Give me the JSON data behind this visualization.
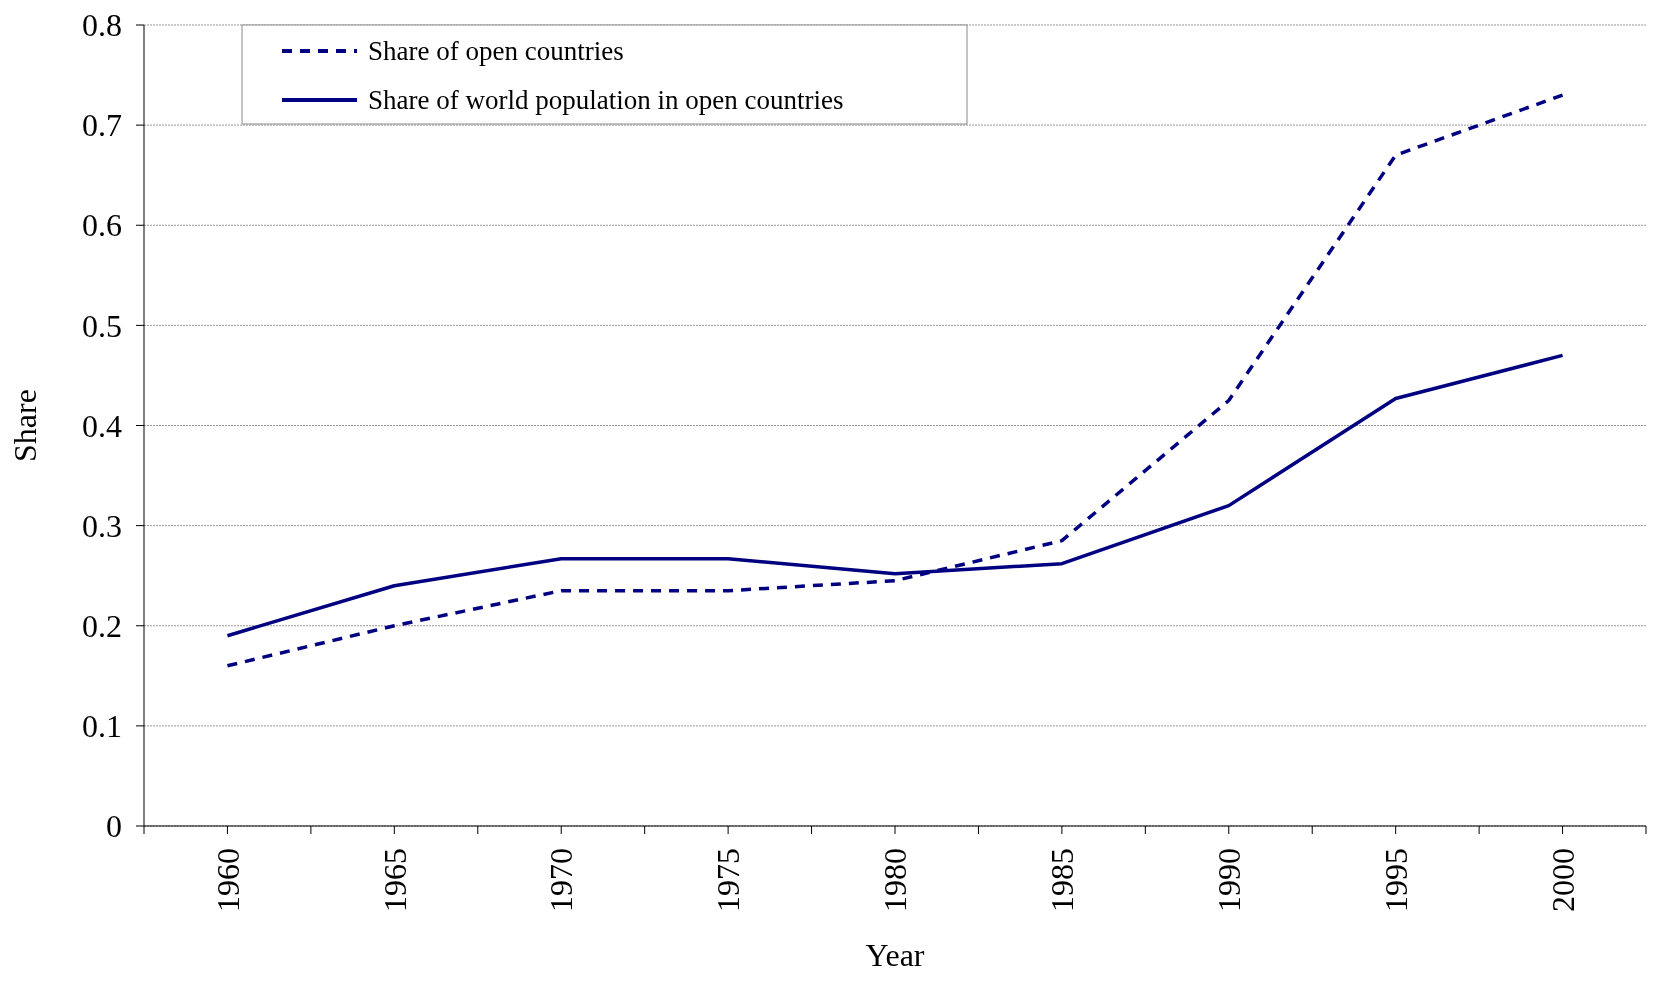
{
  "chart_data": {
    "type": "line",
    "xlabel": "Year",
    "ylabel": "Share",
    "x": [
      1960,
      1965,
      1970,
      1975,
      1980,
      1985,
      1990,
      1995,
      2000
    ],
    "series": [
      {
        "name": "Share of open countries",
        "color": "#000080",
        "line_style": "dashed",
        "values": [
          0.16,
          0.2,
          0.235,
          0.235,
          0.245,
          0.285,
          0.425,
          0.67,
          0.73
        ]
      },
      {
        "name": "Share of world population in open countries",
        "color": "#000080",
        "line_style": "solid",
        "values": [
          0.19,
          0.24,
          0.267,
          0.267,
          0.252,
          0.262,
          0.32,
          0.427,
          0.47
        ]
      }
    ],
    "xlim": [
      1957.5,
      2002.5
    ],
    "xticks": [
      {
        "value": 1957.5,
        "label": null
      },
      1960,
      {
        "value": 1962.5,
        "label": null
      },
      1965,
      {
        "value": 1967.5,
        "label": null
      },
      1970,
      {
        "value": 1972.5,
        "label": null
      },
      1975,
      {
        "value": 1977.5,
        "label": null
      },
      1980,
      {
        "value": 1982.5,
        "label": null
      },
      1985,
      {
        "value": 1987.5,
        "label": null
      },
      1990,
      {
        "value": 1992.5,
        "label": null
      },
      1995,
      {
        "value": 1997.5,
        "label": null
      },
      2000,
      {
        "value": 2002.5,
        "label": null
      }
    ],
    "ylim": [
      0,
      0.8
    ],
    "yticks": [
      0,
      0.1,
      0.2,
      0.3,
      0.4,
      0.5,
      0.6,
      0.7,
      0.8
    ],
    "grid": "y",
    "legend": "top left"
  }
}
